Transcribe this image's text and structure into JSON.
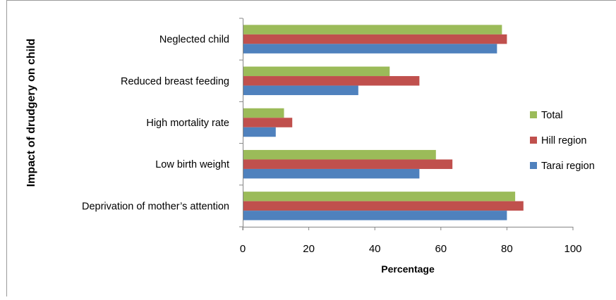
{
  "chart_data": {
    "type": "bar",
    "orientation": "horizontal",
    "categories": [
      "Neglected child",
      "Reduced breast feeding",
      "High mortality rate",
      "Low birth weight",
      "Deprivation of mother’s attention"
    ],
    "series": [
      {
        "name": "Total",
        "color": "#9BBB59",
        "values": [
          78.5,
          44.5,
          12.5,
          58.5,
          82.5
        ]
      },
      {
        "name": "Hill region",
        "color": "#C0504D",
        "values": [
          80,
          53.5,
          15,
          63.5,
          85
        ]
      },
      {
        "name": "Tarai region",
        "color": "#4F81BD",
        "values": [
          77,
          35,
          10,
          53.5,
          80
        ]
      }
    ],
    "xlabel": "Percentage",
    "ylabel": "Impact of drudgery on child",
    "xlim": [
      0,
      100
    ],
    "xticks": [
      0,
      20,
      40,
      60,
      80,
      100
    ],
    "grid": false,
    "legend_position": "right"
  }
}
